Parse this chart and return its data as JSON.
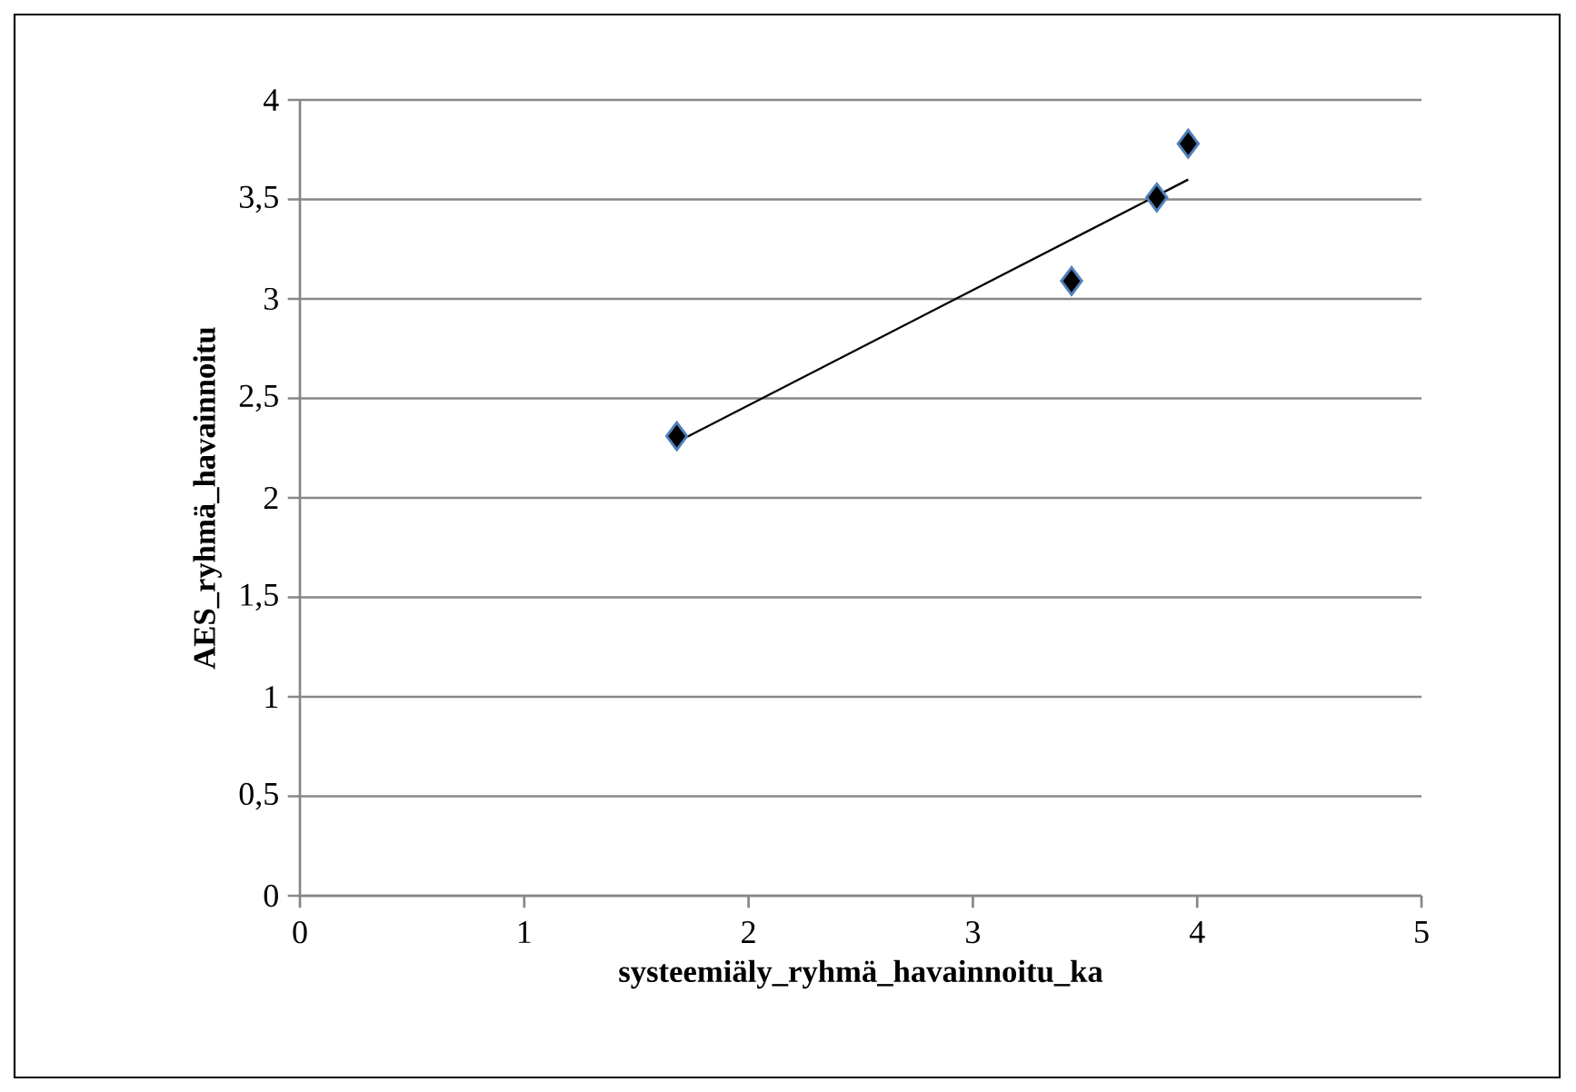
{
  "chart_data": {
    "type": "scatter",
    "xlabel": "systeemiäly_ryhmä_havainnoitu_ka",
    "ylabel": "AES_ryhmä_havainnoitu",
    "series": [
      {
        "x": [
          1.68,
          3.44,
          3.82,
          3.96
        ],
        "values": [
          2.31,
          3.09,
          3.51,
          3.78
        ],
        "color": "#000000",
        "marker": "diamond"
      },
      {
        "type": "line",
        "x": [
          1.68,
          3.96
        ],
        "values": [
          2.28,
          3.6
        ],
        "color": "#000000",
        "marker": "none",
        "line_style": "solid"
      }
    ],
    "xlim": [
      0,
      5
    ],
    "xticks": [
      0,
      1,
      2,
      3,
      4,
      5
    ],
    "ylim": [
      0,
      4
    ],
    "yticks": [
      0,
      {
        "value": 0.5,
        "label": "0,5"
      },
      1,
      {
        "value": 1.5,
        "label": "1,5"
      },
      2,
      {
        "value": 2.5,
        "label": "2,5"
      },
      3,
      {
        "value": 3.5,
        "label": "3,5"
      },
      4
    ],
    "grid": "y"
  }
}
